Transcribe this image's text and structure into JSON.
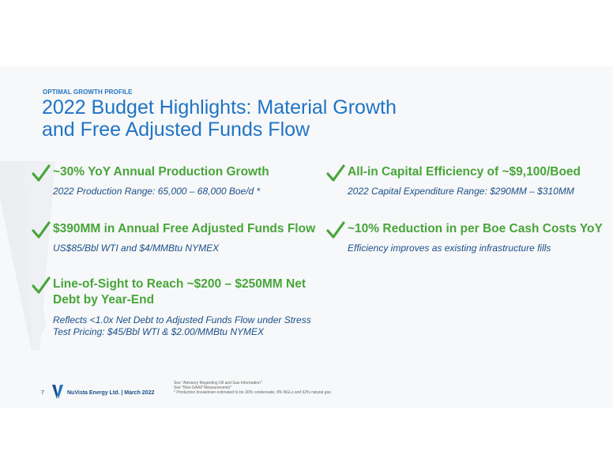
{
  "header": {
    "eyebrow": "OPTIMAL GROWTH PROFILE",
    "title_line1": "2022 Budget Highlights: Material Growth",
    "title_line2": "and Free Adjusted Funds Flow"
  },
  "highlights": [
    {
      "headline": "~30% YoY Annual Production Growth",
      "detail": "2022 Production Range: 65,000 – 68,000 Boe/d *"
    },
    {
      "headline": "All-in Capital Efficiency of ~$9,100/Boed",
      "detail": "2022 Capital Expenditure Range: $290MM – $310MM"
    },
    {
      "headline": "$390MM in Annual Free Adjusted Funds Flow",
      "detail": "US$85/Bbl WTI and $4/MMBtu NYMEX"
    },
    {
      "headline": "~10% Reduction in per Boe Cash Costs YoY",
      "detail": "Efficiency improves as existing infrastructure fills"
    },
    {
      "headline": "Line-of-Sight to Reach ~$200 – $250MM Net Debt by Year-End",
      "detail": "Reflects <1.0x Net Debt to Adjusted Funds Flow under Stress Test Pricing: $45/Bbl WTI & $2.00/MMBtu NYMEX"
    }
  ],
  "icons": {
    "check": "checkmark-icon",
    "logo": "nuvista-logo-icon"
  },
  "colors": {
    "title_blue": "#1f74c6",
    "check_green": "#47a53a",
    "detail_navy": "#1a4f8a"
  },
  "footer": {
    "page_number": "7",
    "company": "NuVista Energy Ltd. | March 2022",
    "note1": "See \"Advisory Regarding Oil and Gas Information\"",
    "note2": "See \"Non-GAAP Measurements\"",
    "note3": "* Production breakdown estimated to be 30% condensate, 8% NGLs and 62% natural gas."
  }
}
